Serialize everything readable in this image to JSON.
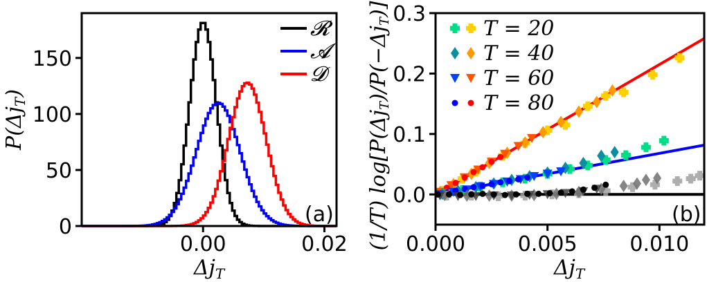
{
  "chart_data": [
    {
      "panel": "(a)",
      "type": "line",
      "xlabel": "Δj_T",
      "ylabel": "P(Δj_T)",
      "xlim": [
        -0.02,
        0.022
      ],
      "ylim": [
        0,
        190
      ],
      "xticks": [
        0.0,
        0.02
      ],
      "xtick_labels": [
        "0.00",
        "0.02"
      ],
      "yticks": [
        0,
        50,
        100,
        150
      ],
      "ytick_labels": [
        "0",
        "50",
        "100",
        "150"
      ],
      "legend": {
        "position": "top-right",
        "entries": [
          "R",
          "A",
          "D"
        ]
      },
      "series": [
        {
          "name": "R",
          "color": "#000000",
          "mean": 0.0,
          "sd": 0.0022,
          "peak": 182
        },
        {
          "name": "A",
          "color": "#0000ff",
          "mean": 0.0025,
          "sd": 0.0036,
          "peak": 110
        },
        {
          "name": "D",
          "color": "#ff0000",
          "mean": 0.0073,
          "sd": 0.0031,
          "peak": 128
        }
      ]
    },
    {
      "panel": "(b)",
      "type": "scatter",
      "xlabel": "Δj_T",
      "ylabel": "(1/T) log[P(Δj_T)/P(−Δj_T)]",
      "xlim": [
        0.0,
        0.012
      ],
      "ylim": [
        -0.05,
        0.3
      ],
      "xticks": [
        0.0,
        0.005,
        0.01
      ],
      "xtick_labels": [
        "0.000",
        "0.005",
        "0.010"
      ],
      "yticks": [
        0.0,
        0.1,
        0.2,
        0.3
      ],
      "ytick_labels": [
        "0.0",
        "0.1",
        "0.2",
        "0.3"
      ],
      "legend": {
        "position": "top-left",
        "entries": [
          "T = 20",
          "T = 40",
          "T = 60",
          "T = 80"
        ]
      },
      "lines": [
        {
          "name": "red-fit",
          "color": "#ff0000",
          "slope": 21.5,
          "x": [
            0.0,
            0.012
          ]
        },
        {
          "name": "blue-fit",
          "color": "#0000ff",
          "slope": 6.8,
          "x": [
            0.0,
            0.012
          ]
        },
        {
          "name": "zero",
          "color": "#000000",
          "slope": 0.0,
          "x": [
            0.0,
            0.012
          ]
        }
      ],
      "markers": {
        "T=20": {
          "shape": "plus",
          "colors": [
            "#00dd88",
            "#ffd000"
          ]
        },
        "T=40": {
          "shape": "diamond",
          "colors": [
            "#0a8ea0",
            "#ff9900"
          ]
        },
        "T=60": {
          "shape": "triangle",
          "colors": [
            "#0040ff",
            "#ff5500"
          ]
        },
        "T=80": {
          "shape": "circle",
          "colors": [
            "#0000ff",
            "#ff0000"
          ]
        }
      },
      "series": [
        {
          "name": "D T=20",
          "shape": "plus",
          "color": "#ffd000",
          "x": [
            0.0003,
            0.0012,
            0.0018,
            0.003,
            0.004,
            0.005,
            0.0058,
            0.0068,
            0.0076,
            0.0084,
            0.0097,
            0.0109
          ],
          "y": [
            0.006,
            0.026,
            0.038,
            0.064,
            0.085,
            0.106,
            0.115,
            0.146,
            0.163,
            0.169,
            0.198,
            0.226
          ]
        },
        {
          "name": "D T=40",
          "shape": "diamond",
          "color": "#ff9900",
          "x": [
            0.0002,
            0.0008,
            0.0016,
            0.0024,
            0.0032,
            0.004,
            0.0048,
            0.0056,
            0.0064,
            0.0072,
            0.0079
          ],
          "y": [
            0.004,
            0.017,
            0.034,
            0.052,
            0.069,
            0.086,
            0.103,
            0.12,
            0.137,
            0.153,
            0.172
          ]
        },
        {
          "name": "D T=60",
          "shape": "triangle",
          "color": "#ff5500",
          "x": [
            0.0002,
            0.0007,
            0.0013,
            0.0019,
            0.0025,
            0.0031,
            0.0037,
            0.0043
          ],
          "y": [
            0.004,
            0.015,
            0.028,
            0.041,
            0.054,
            0.067,
            0.08,
            0.093
          ]
        },
        {
          "name": "D T=80",
          "shape": "circle",
          "color": "#ff0000",
          "x": [
            0.0001,
            0.0005,
            0.0009,
            0.0013,
            0.0017,
            0.0021,
            0.0025,
            0.0029
          ],
          "y": [
            0.002,
            0.011,
            0.019,
            0.028,
            0.037,
            0.045,
            0.054,
            0.062
          ]
        },
        {
          "name": "A T=20",
          "shape": "plus",
          "color": "#00dd88",
          "x": [
            0.0004,
            0.0012,
            0.002,
            0.003,
            0.004,
            0.005,
            0.006,
            0.0068,
            0.0076,
            0.0085,
            0.0094,
            0.0102
          ],
          "y": [
            0.001,
            0.007,
            0.013,
            0.02,
            0.026,
            0.034,
            0.042,
            0.048,
            0.057,
            0.065,
            0.078,
            0.089
          ]
        },
        {
          "name": "A T=40",
          "shape": "diamond",
          "color": "#0a8ea0",
          "x": [
            0.0003,
            0.001,
            0.0018,
            0.0026,
            0.0034,
            0.0042,
            0.005,
            0.0058,
            0.0066,
            0.0074,
            0.008
          ],
          "y": [
            0.001,
            0.006,
            0.012,
            0.018,
            0.024,
            0.03,
            0.036,
            0.044,
            0.052,
            0.064,
            0.07
          ]
        },
        {
          "name": "A T=60",
          "shape": "triangle",
          "color": "#0040ff",
          "x": [
            0.0002,
            0.0008,
            0.0014,
            0.002,
            0.0026,
            0.0032,
            0.0038,
            0.0044,
            0.005,
            0.0056
          ],
          "y": [
            0.0,
            0.004,
            0.008,
            0.013,
            0.017,
            0.021,
            0.025,
            0.03,
            0.034,
            0.038
          ]
        },
        {
          "name": "A T=80",
          "shape": "circle",
          "color": "#0000ff",
          "x": [
            0.0001,
            0.0005,
            0.0009,
            0.0013,
            0.0017,
            0.0021,
            0.0025,
            0.0029,
            0.0033,
            0.0037,
            0.0041
          ],
          "y": [
            0.0,
            0.003,
            0.006,
            0.009,
            0.012,
            0.014,
            0.017,
            0.02,
            0.022,
            0.025,
            0.028
          ]
        },
        {
          "name": "R T=20",
          "shape": "plus",
          "color": "#a0a0a0",
          "x": [
            0.0005,
            0.0016,
            0.0028,
            0.004,
            0.0052,
            0.0064,
            0.0076,
            0.0088,
            0.0098,
            0.0108,
            0.0114,
            0.0118
          ],
          "y": [
            -0.002,
            -0.002,
            -0.003,
            -0.002,
            0.0,
            0.002,
            0.006,
            0.012,
            0.016,
            0.022,
            0.026,
            0.031
          ]
        },
        {
          "name": "R T=40",
          "shape": "diamond",
          "color": "#707070",
          "x": [
            0.0004,
            0.0014,
            0.0024,
            0.0034,
            0.0044,
            0.0054,
            0.0064,
            0.0074,
            0.0084,
            0.009,
            0.0094,
            0.0099
          ],
          "y": [
            -0.001,
            -0.002,
            -0.002,
            -0.002,
            -0.001,
            0.001,
            0.004,
            0.009,
            0.014,
            0.018,
            0.024,
            0.027
          ]
        },
        {
          "name": "R T=60",
          "shape": "triangle",
          "color": "#404040",
          "x": [
            0.0002,
            0.001,
            0.0018,
            0.0026,
            0.0034,
            0.0042,
            0.005,
            0.0058,
            0.0066,
            0.0072
          ],
          "y": [
            -0.002,
            -0.003,
            -0.003,
            -0.002,
            -0.002,
            -0.001,
            0.0,
            0.002,
            0.005,
            0.009
          ]
        },
        {
          "name": "R T=80",
          "shape": "circle",
          "color": "#000000",
          "x": [
            0.0001,
            0.0006,
            0.0011,
            0.0016,
            0.0021,
            0.0026,
            0.0031,
            0.0036,
            0.0041,
            0.0046,
            0.0051,
            0.0056,
            0.0061,
            0.0066,
            0.0071,
            0.0076
          ],
          "y": [
            0.0,
            0.0,
            -0.001,
            0.0,
            0.001,
            0.0,
            -0.001,
            0.0,
            0.001,
            0.001,
            0.002,
            0.003,
            0.005,
            0.008,
            0.011,
            0.016
          ]
        }
      ]
    }
  ]
}
